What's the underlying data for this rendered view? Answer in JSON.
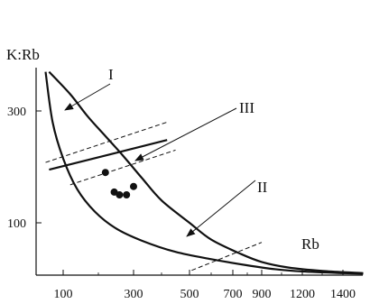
{
  "chart_data": {
    "type": "scatter",
    "ylabel": "K:Rb",
    "xlabel": "Rb",
    "x_ticks": [
      "100",
      "300",
      "500",
      "700",
      "900",
      "1200",
      "1400"
    ],
    "y_ticks": [
      "100",
      "300"
    ],
    "x_scale": "nonlinear",
    "ylim": [
      0,
      370
    ],
    "grid": false,
    "curve_labels": [
      "I",
      "II",
      "III"
    ],
    "points": [
      {
        "x": 220,
        "y": 190
      },
      {
        "x": 245,
        "y": 155
      },
      {
        "x": 260,
        "y": 150
      },
      {
        "x": 280,
        "y": 150
      },
      {
        "x": 300,
        "y": 165
      }
    ],
    "curves": [
      {
        "name": "I",
        "style": "solid",
        "points": [
          [
            60,
            370
          ],
          [
            120,
            330
          ],
          [
            170,
            290
          ],
          [
            220,
            255
          ],
          [
            270,
            220
          ],
          [
            330,
            180
          ],
          [
            400,
            140
          ],
          [
            500,
            100
          ],
          [
            600,
            70
          ],
          [
            750,
            45
          ],
          [
            900,
            30
          ],
          [
            1100,
            20
          ],
          [
            1300,
            14
          ],
          [
            1500,
            10
          ]
        ]
      },
      {
        "name": "II",
        "style": "solid",
        "points": [
          [
            50,
            370
          ],
          [
            70,
            280
          ],
          [
            100,
            215
          ],
          [
            140,
            160
          ],
          [
            190,
            120
          ],
          [
            250,
            90
          ],
          [
            330,
            68
          ],
          [
            450,
            48
          ],
          [
            600,
            35
          ],
          [
            800,
            24
          ],
          [
            1000,
            17
          ],
          [
            1200,
            13
          ],
          [
            1400,
            10
          ],
          [
            1500,
            9
          ]
        ]
      },
      {
        "name": "III-line-upper",
        "style": "dashed",
        "points": [
          [
            50,
            208
          ],
          [
            420,
            280
          ]
        ]
      },
      {
        "name": "III-line-middle",
        "style": "solid",
        "points": [
          [
            60,
            195
          ],
          [
            420,
            248
          ]
        ]
      },
      {
        "name": "III-line-lower",
        "style": "dashed",
        "points": [
          [
            120,
            168
          ],
          [
            450,
            230
          ]
        ]
      },
      {
        "name": "II-line",
        "style": "dashed",
        "points": [
          [
            510,
            15
          ],
          [
            900,
            65
          ]
        ]
      }
    ]
  }
}
